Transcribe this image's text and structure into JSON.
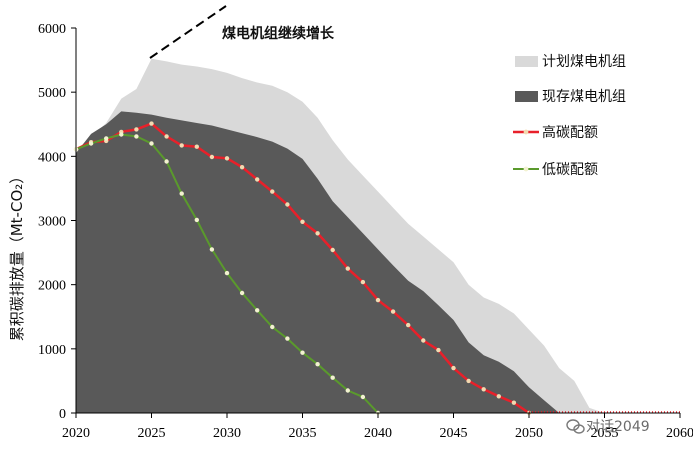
{
  "chart_data": {
    "type": "area",
    "title": "",
    "xlabel": "",
    "ylabel": "累积碳排放量（Mt-CO₂）",
    "xlim": [
      2020,
      2060
    ],
    "ylim": [
      0,
      6000
    ],
    "x_ticks": [
      "2020",
      "2025",
      "2030",
      "2035",
      "2040",
      "2045",
      "2050",
      "2055",
      "2060"
    ],
    "y_ticks": [
      "0",
      "1000",
      "2000",
      "3000",
      "4000",
      "5000",
      "6000"
    ],
    "grid": false,
    "legend_position": "right",
    "annotation": "煤电机组继续增长",
    "series": [
      {
        "name": "计划煤电机组",
        "kind": "area",
        "color": "#d9d9d9",
        "x": [
          2020,
          2021,
          2022,
          2023,
          2024,
          2025,
          2026,
          2027,
          2028,
          2029,
          2030,
          2031,
          2032,
          2033,
          2034,
          2035,
          2036,
          2037,
          2038,
          2039,
          2040,
          2041,
          2042,
          2043,
          2044,
          2045,
          2046,
          2047,
          2048,
          2049,
          2050,
          2051,
          2052,
          2053,
          2054,
          2055
        ],
        "values": [
          4100,
          4300,
          4520,
          4900,
          5050,
          5520,
          5480,
          5430,
          5400,
          5360,
          5300,
          5220,
          5150,
          5100,
          5000,
          4850,
          4600,
          4250,
          3950,
          3700,
          3450,
          3200,
          2950,
          2750,
          2550,
          2350,
          2000,
          1800,
          1700,
          1550,
          1300,
          1050,
          700,
          500,
          80,
          0
        ]
      },
      {
        "name": "现存煤电机组",
        "kind": "area",
        "color": "#595959",
        "x": [
          2020,
          2021,
          2022,
          2023,
          2024,
          2025,
          2026,
          2027,
          2028,
          2029,
          2030,
          2031,
          2032,
          2033,
          2034,
          2035,
          2036,
          2037,
          2038,
          2039,
          2040,
          2041,
          2042,
          2043,
          2044,
          2045,
          2046,
          2047,
          2048,
          2049,
          2050,
          2051,
          2052
        ],
        "values": [
          4050,
          4350,
          4500,
          4700,
          4680,
          4650,
          4600,
          4560,
          4520,
          4480,
          4420,
          4360,
          4300,
          4230,
          4120,
          3960,
          3650,
          3300,
          3050,
          2800,
          2550,
          2300,
          2060,
          1900,
          1680,
          1450,
          1100,
          900,
          800,
          650,
          400,
          200,
          0
        ]
      },
      {
        "name": "高碳配额",
        "kind": "line",
        "color": "#e8202a",
        "x": [
          2020,
          2021,
          2022,
          2023,
          2024,
          2025,
          2026,
          2027,
          2028,
          2029,
          2030,
          2031,
          2032,
          2033,
          2034,
          2035,
          2036,
          2037,
          2038,
          2039,
          2040,
          2041,
          2042,
          2043,
          2044,
          2045,
          2046,
          2047,
          2048,
          2049,
          2050
        ],
        "values": [
          4110,
          4220,
          4240,
          4380,
          4420,
          4510,
          4310,
          4170,
          4150,
          3990,
          3970,
          3830,
          3640,
          3450,
          3250,
          2980,
          2800,
          2540,
          2250,
          2040,
          1760,
          1580,
          1370,
          1130,
          980,
          700,
          500,
          370,
          260,
          160,
          0
        ]
      },
      {
        "name": "低碳配额",
        "kind": "line",
        "color": "#5a9a2c",
        "x": [
          2020,
          2021,
          2022,
          2023,
          2024,
          2025,
          2026,
          2027,
          2028,
          2029,
          2030,
          2031,
          2032,
          2033,
          2034,
          2035,
          2036,
          2037,
          2038,
          2039,
          2040
        ],
        "values": [
          4110,
          4200,
          4280,
          4340,
          4310,
          4200,
          3920,
          3420,
          3010,
          2550,
          2180,
          1870,
          1600,
          1340,
          1160,
          940,
          760,
          550,
          350,
          250,
          0
        ]
      }
    ]
  },
  "watermark": "对话2049",
  "watermark_icon": "wechat-icon"
}
